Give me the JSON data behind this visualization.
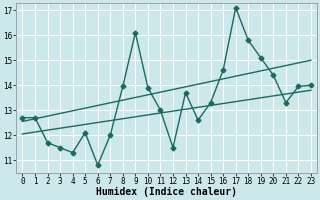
{
  "xlabel": "Humidex (Indice chaleur)",
  "bg_color": "#cce8ea",
  "grid_color": "#ffffff",
  "line_color": "#1a6b5e",
  "xlim": [
    -0.5,
    23.5
  ],
  "ylim": [
    10.5,
    17.3
  ],
  "yticks": [
    11,
    12,
    13,
    14,
    15,
    16,
    17
  ],
  "xticks": [
    0,
    1,
    2,
    3,
    4,
    5,
    6,
    7,
    8,
    9,
    10,
    11,
    12,
    13,
    14,
    15,
    16,
    17,
    18,
    19,
    20,
    21,
    22,
    23
  ],
  "zigzag_x": [
    0,
    1,
    2,
    3,
    4,
    5,
    6,
    7,
    8,
    9,
    10,
    11,
    12,
    13,
    14,
    15,
    16,
    17,
    18,
    19,
    20,
    21,
    22,
    23
  ],
  "zigzag_y": [
    12.7,
    12.7,
    11.7,
    11.5,
    11.3,
    12.1,
    10.8,
    12.0,
    13.95,
    16.1,
    13.9,
    13.0,
    11.5,
    13.7,
    12.6,
    13.3,
    14.6,
    17.1,
    15.8,
    15.1,
    14.4,
    13.3,
    13.95,
    14.0
  ],
  "trend1_x": [
    0,
    23
  ],
  "trend1_y": [
    12.05,
    13.8
  ],
  "trend2_x": [
    0,
    23
  ],
  "trend2_y": [
    12.55,
    15.0
  ],
  "font_size_xlabel": 7,
  "tick_font_size": 5.5,
  "marker": "D",
  "marker_size": 2.5,
  "linewidth": 1.0
}
